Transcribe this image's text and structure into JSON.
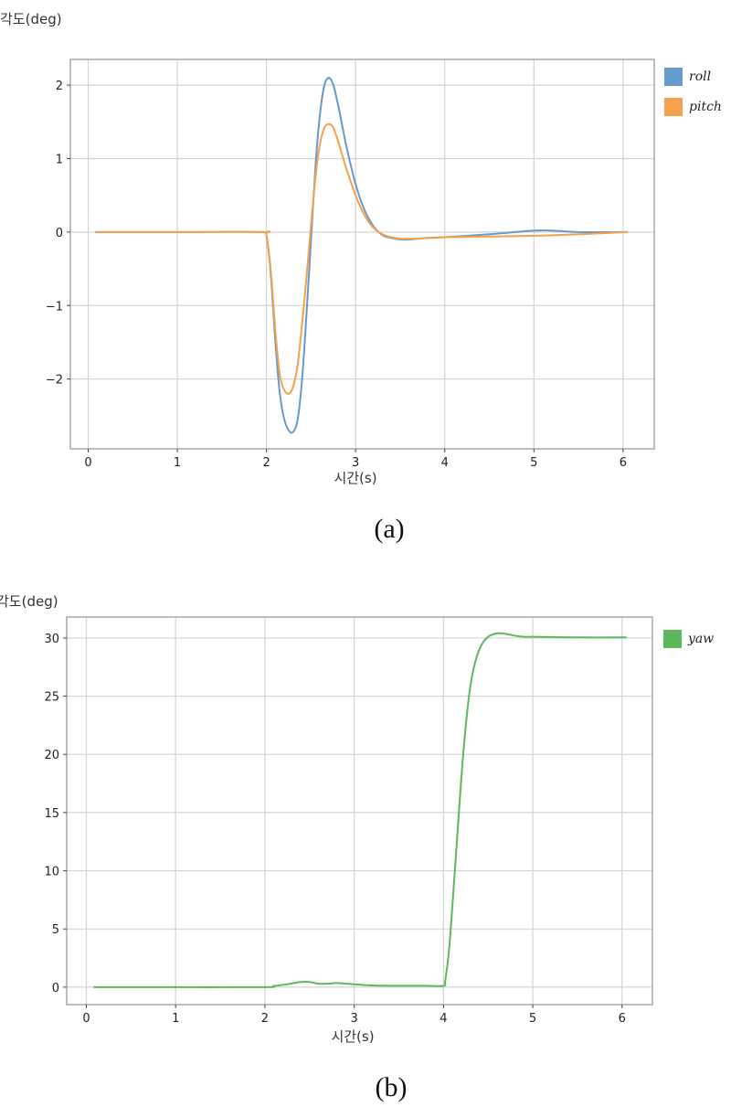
{
  "chart_data": [
    {
      "id": "a",
      "type": "line",
      "title": "",
      "caption": "(a)",
      "xlabel": "시간(s)",
      "ylabel": "각도(deg)",
      "xlim": [
        -0.2,
        6.35
      ],
      "ylim": [
        -2.95,
        2.35
      ],
      "xticks": [
        0,
        1,
        2,
        3,
        4,
        5,
        6
      ],
      "yticks": [
        -2,
        -1,
        0,
        1,
        2
      ],
      "ytick_labels": [
        "−2",
        "−1",
        "0",
        "1",
        "2"
      ],
      "grid": true,
      "legend_position": "outside-right-top",
      "series": [
        {
          "name": "roll",
          "color": "#6699cc",
          "x": [
            0.08,
            1.0,
            1.95,
            2.0,
            2.05,
            2.1,
            2.15,
            2.2,
            2.25,
            2.3,
            2.35,
            2.4,
            2.45,
            2.5,
            2.55,
            2.6,
            2.65,
            2.7,
            2.75,
            2.8,
            2.85,
            2.9,
            3.0,
            3.1,
            3.2,
            3.3,
            3.4,
            3.5,
            3.6,
            3.7,
            3.8,
            4.0,
            4.5,
            5.0,
            5.2,
            5.5,
            6.05
          ],
          "y": [
            0,
            0,
            0,
            -0.05,
            -0.6,
            -1.5,
            -2.2,
            -2.55,
            -2.7,
            -2.72,
            -2.55,
            -2.0,
            -1.1,
            -0.1,
            0.9,
            1.6,
            2.0,
            2.1,
            2.0,
            1.75,
            1.45,
            1.15,
            0.65,
            0.3,
            0.08,
            -0.04,
            -0.08,
            -0.1,
            -0.1,
            -0.09,
            -0.08,
            -0.07,
            -0.03,
            0.02,
            0.02,
            0.0,
            0.0
          ]
        },
        {
          "name": "pitch",
          "color": "#f5a04a",
          "x": [
            0.08,
            1.0,
            1.95,
            2.0,
            2.05,
            2.1,
            2.15,
            2.2,
            2.25,
            2.3,
            2.35,
            2.4,
            2.45,
            2.5,
            2.55,
            2.6,
            2.65,
            2.7,
            2.75,
            2.8,
            2.85,
            2.9,
            3.0,
            3.1,
            3.2,
            3.3,
            3.4,
            3.5,
            3.6,
            3.7,
            3.8,
            4.0,
            4.5,
            5.0,
            5.5,
            6.05
          ],
          "y": [
            0,
            0,
            0,
            -0.05,
            -0.55,
            -1.35,
            -1.95,
            -2.15,
            -2.2,
            -2.1,
            -1.8,
            -1.25,
            -0.6,
            0.1,
            0.75,
            1.2,
            1.42,
            1.47,
            1.42,
            1.25,
            1.05,
            0.85,
            0.5,
            0.23,
            0.06,
            -0.03,
            -0.07,
            -0.09,
            -0.09,
            -0.09,
            -0.08,
            -0.07,
            -0.06,
            -0.05,
            -0.03,
            0.0
          ]
        }
      ]
    },
    {
      "id": "b",
      "type": "line",
      "title": "",
      "caption": "(b)",
      "xlabel": "시간(s)",
      "ylabel": "각도(deg)",
      "xlim": [
        -0.22,
        6.34
      ],
      "ylim": [
        -1.5,
        31.8
      ],
      "xticks": [
        0,
        1,
        2,
        3,
        4,
        5,
        6
      ],
      "yticks": [
        0,
        5,
        10,
        15,
        20,
        25,
        30
      ],
      "ytick_labels": [
        "0",
        "5",
        "10",
        "15",
        "20",
        "25",
        "30"
      ],
      "grid": true,
      "legend_position": "outside-right-top",
      "series": [
        {
          "name": "yaw",
          "color": "#5cb85c",
          "x": [
            0.08,
            1.0,
            2.0,
            2.1,
            2.25,
            2.4,
            2.5,
            2.6,
            2.7,
            2.8,
            2.9,
            3.0,
            3.2,
            3.5,
            3.8,
            4.0,
            4.02,
            4.06,
            4.1,
            4.15,
            4.2,
            4.25,
            4.3,
            4.35,
            4.4,
            4.45,
            4.5,
            4.55,
            4.6,
            4.65,
            4.7,
            4.8,
            4.9,
            5.0,
            5.5,
            6.05
          ],
          "y": [
            0,
            0,
            0,
            0.1,
            0.25,
            0.45,
            0.45,
            0.3,
            0.3,
            0.35,
            0.3,
            0.25,
            0.15,
            0.12,
            0.12,
            0.12,
            0.6,
            3.0,
            7.0,
            12.5,
            18.0,
            22.5,
            25.8,
            27.8,
            29.0,
            29.7,
            30.1,
            30.3,
            30.4,
            30.4,
            30.35,
            30.2,
            30.1,
            30.1,
            30.05,
            30.05
          ]
        }
      ]
    }
  ],
  "figures": {
    "a": {
      "ylabel": "각도(deg)",
      "xlabel": "시간(s)",
      "caption": "(a)",
      "legend": [
        {
          "label": "roll",
          "color": "#6699cc"
        },
        {
          "label": "pitch",
          "color": "#f5a04a"
        }
      ]
    },
    "b": {
      "ylabel": "각도(deg)",
      "xlabel": "시간(s)",
      "caption": "(b)",
      "legend": [
        {
          "label": "yaw",
          "color": "#5cb85c"
        }
      ]
    }
  }
}
